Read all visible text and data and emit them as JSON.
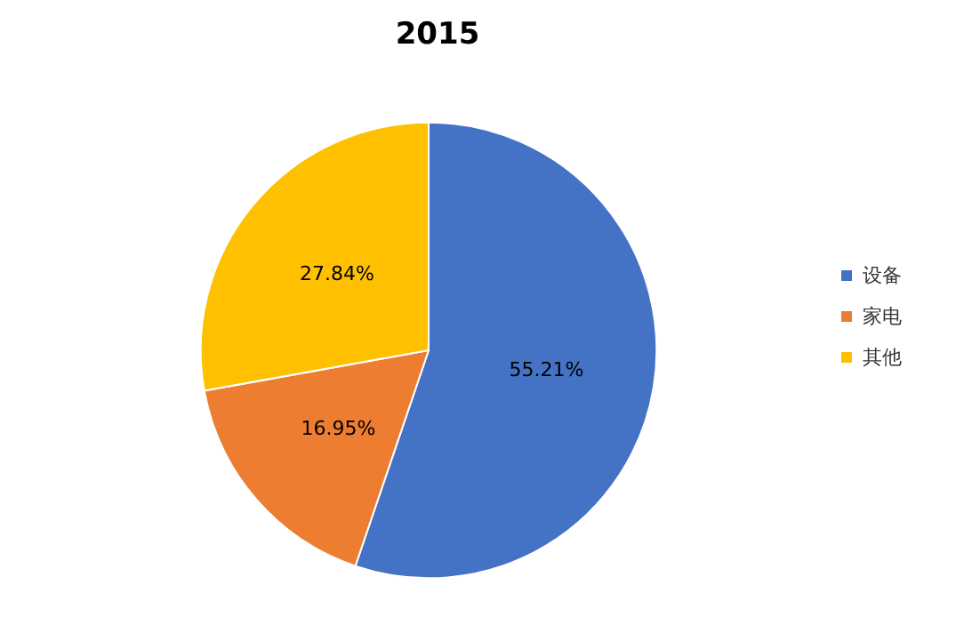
{
  "chart_data": {
    "type": "pie",
    "title": "2015",
    "categories": [
      "设备",
      "家电",
      "其他"
    ],
    "values": [
      55.21,
      16.95,
      27.84
    ],
    "colors": [
      "#4472c4",
      "#ed7d31",
      "#ffc000"
    ],
    "value_labels": [
      "55.21%",
      "16.95%",
      "27.84%"
    ],
    "legend": "right"
  }
}
